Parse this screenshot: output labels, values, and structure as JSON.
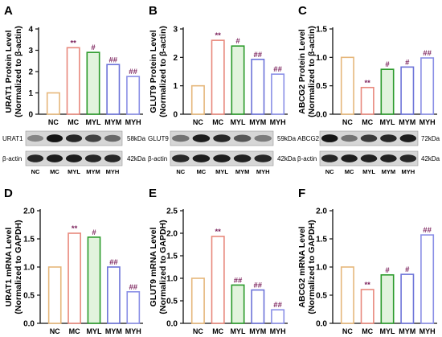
{
  "chart_data": [
    {
      "type": "bar",
      "panel": "A",
      "categories": [
        "NC",
        "MC",
        "MYL",
        "MYM",
        "MYH"
      ],
      "values": [
        1.0,
        3.12,
        2.9,
        2.33,
        1.77
      ],
      "annotations": [
        "",
        "**",
        "#",
        "##",
        "##"
      ],
      "ylabel": "URAT1 Protein Level\n(Normalized to β-actin)",
      "ylim": [
        0,
        4
      ],
      "yticks": [
        0,
        1,
        2,
        3,
        4
      ]
    },
    {
      "type": "bar",
      "panel": "B",
      "categories": [
        "NC",
        "MC",
        "MYL",
        "MYM",
        "MYH"
      ],
      "values": [
        1.0,
        2.6,
        2.4,
        1.93,
        1.41
      ],
      "annotations": [
        "",
        "**",
        "#",
        "##",
        "##"
      ],
      "ylabel": "GLUT9 Protein Level\n(Normalized to β-actin)",
      "ylim": [
        0,
        3
      ],
      "yticks": [
        0,
        1,
        2,
        3
      ]
    },
    {
      "type": "bar",
      "panel": "C",
      "categories": [
        "NC",
        "MC",
        "MYL",
        "MYM",
        "MYH"
      ],
      "values": [
        1.0,
        0.47,
        0.79,
        0.83,
        0.99
      ],
      "annotations": [
        "",
        "**",
        "#",
        "#",
        "##"
      ],
      "ylabel": "ABCG2 Protein Level\n(Normalized to β-actin)",
      "ylim": [
        0,
        1.5
      ],
      "yticks": [
        0.0,
        0.5,
        1.0,
        1.5
      ]
    },
    {
      "type": "bar",
      "panel": "D",
      "categories": [
        "NC",
        "MC",
        "MYL",
        "MYM",
        "MYH"
      ],
      "values": [
        1.0,
        1.6,
        1.53,
        1.0,
        0.56
      ],
      "annotations": [
        "",
        "**",
        "#",
        "##",
        "##"
      ],
      "ylabel": "URAT1 mRNA Level\n(Normalized to GAPDH)",
      "ylim": [
        0,
        2
      ],
      "yticks": [
        0.0,
        0.5,
        1.0,
        1.5,
        2.0
      ]
    },
    {
      "type": "bar",
      "panel": "E",
      "categories": [
        "NC",
        "MC",
        "MYL",
        "MYM",
        "MYH"
      ],
      "values": [
        1.0,
        1.93,
        0.85,
        0.74,
        0.3
      ],
      "annotations": [
        "",
        "**",
        "##",
        "##",
        "##"
      ],
      "ylabel": "GLUT9 mRNA Level\n(Normalized to GAPDH)",
      "ylim": [
        0,
        2.5
      ],
      "yticks": [
        0.0,
        0.5,
        1.0,
        1.5,
        2.0,
        2.5
      ]
    },
    {
      "type": "bar",
      "panel": "F",
      "categories": [
        "NC",
        "MC",
        "MYL",
        "MYM",
        "MYH"
      ],
      "values": [
        1.0,
        0.6,
        0.86,
        0.87,
        1.57
      ],
      "annotations": [
        "",
        "**",
        "#",
        "#",
        "##"
      ],
      "ylabel": "ABCG2 mRNA Level\n(Normalized to GAPDH)",
      "ylim": [
        0,
        2
      ],
      "yticks": [
        0.0,
        0.5,
        1.0,
        1.5,
        2.0
      ]
    }
  ],
  "colors": {
    "bar_edges": [
      "#e6b77b",
      "#e8887c",
      "#2a9a2a",
      "#6c73d8",
      "#8a8fe6"
    ],
    "bar_fills": [
      "#ffffff",
      "#ffffff",
      "#e2f3dd",
      "#ffffff",
      "#ffffff"
    ],
    "annotation": "#7a1f5a",
    "axis": "#111111"
  },
  "blots": [
    {
      "panel": "A",
      "target": "URAT1",
      "target_kda": "58kDa",
      "ref": "β-actin",
      "ref_kda": "42kDa",
      "lanes": [
        "NC",
        "MC",
        "MYL",
        "MYM",
        "MYH"
      ]
    },
    {
      "panel": "B",
      "target": "GLUT9",
      "target_kda": "59kDa",
      "ref": "β-actin",
      "ref_kda": "42kDa",
      "lanes": [
        "NC",
        "MC",
        "MYL",
        "MYM",
        "MYH"
      ]
    },
    {
      "panel": "C",
      "target": "ABCG2",
      "target_kda": "72kDa",
      "ref": "β-actin",
      "ref_kda": "42kDa",
      "lanes": [
        "NC",
        "MC",
        "MYL",
        "MYM",
        "MYH"
      ]
    }
  ]
}
